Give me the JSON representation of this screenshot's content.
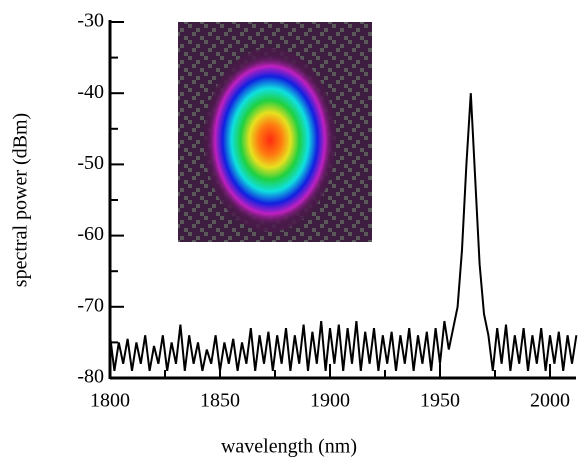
{
  "chart_data": {
    "type": "line",
    "xlabel": "wavelength (nm)",
    "ylabel": "spectral power (dBm)",
    "color": "#000000",
    "xlim": [
      1800,
      2012
    ],
    "ylim": [
      -80,
      -30
    ],
    "xticks": [
      1800,
      1850,
      1900,
      1950,
      2000
    ],
    "yticks": [
      -80,
      -70,
      -60,
      -50,
      -40,
      -30
    ],
    "xminorticks": [
      1825,
      1875,
      1925,
      1975
    ],
    "yminorticks": [
      -75,
      -65,
      -55,
      -45,
      -35
    ],
    "x": [
      1800,
      1802,
      1804,
      1806,
      1808,
      1810,
      1812,
      1814,
      1816,
      1818,
      1820,
      1822,
      1824,
      1826,
      1828,
      1830,
      1832,
      1834,
      1836,
      1838,
      1840,
      1842,
      1844,
      1846,
      1848,
      1850,
      1852,
      1854,
      1856,
      1858,
      1860,
      1862,
      1864,
      1866,
      1868,
      1870,
      1872,
      1874,
      1876,
      1878,
      1880,
      1882,
      1884,
      1886,
      1888,
      1890,
      1892,
      1894,
      1896,
      1898,
      1900,
      1902,
      1904,
      1906,
      1908,
      1910,
      1912,
      1914,
      1916,
      1918,
      1920,
      1922,
      1924,
      1926,
      1928,
      1930,
      1932,
      1934,
      1936,
      1938,
      1940,
      1942,
      1944,
      1946,
      1948,
      1950,
      1952,
      1954,
      1956,
      1958,
      1960,
      1962,
      1964,
      1966,
      1968,
      1970,
      1972,
      1974,
      1976,
      1978,
      1980,
      1982,
      1984,
      1986,
      1988,
      1990,
      1992,
      1994,
      1996,
      1998,
      2000,
      2002,
      2004,
      2006,
      2008,
      2010,
      2012
    ],
    "values": [
      -74,
      -79,
      -75,
      -78,
      -74.5,
      -79,
      -75,
      -78,
      -74,
      -79,
      -75.5,
      -78,
      -74,
      -79,
      -75,
      -78,
      -72.5,
      -79,
      -74,
      -78,
      -75,
      -79,
      -76,
      -78,
      -74,
      -79,
      -75,
      -78,
      -74.5,
      -79,
      -75,
      -78,
      -73,
      -79,
      -74,
      -78,
      -73.5,
      -79,
      -74,
      -78,
      -73,
      -79,
      -74,
      -78,
      -72.5,
      -79,
      -73.5,
      -78,
      -72,
      -79,
      -73,
      -78,
      -72.5,
      -79,
      -73,
      -78,
      -72,
      -79,
      -73.5,
      -78,
      -73,
      -79,
      -74,
      -78,
      -73.5,
      -79,
      -74,
      -78,
      -73,
      -79,
      -74,
      -78,
      -73.5,
      -79,
      -73,
      -78,
      -72,
      -76,
      -73,
      -70,
      -62,
      -50,
      -40,
      -52,
      -64,
      -71,
      -74,
      -79,
      -73,
      -78,
      -72.5,
      -79,
      -74,
      -78,
      -73,
      -79,
      -74,
      -78,
      -73,
      -79,
      -74,
      -78,
      -73.5,
      -79,
      -74,
      -78,
      -74
    ]
  }
}
